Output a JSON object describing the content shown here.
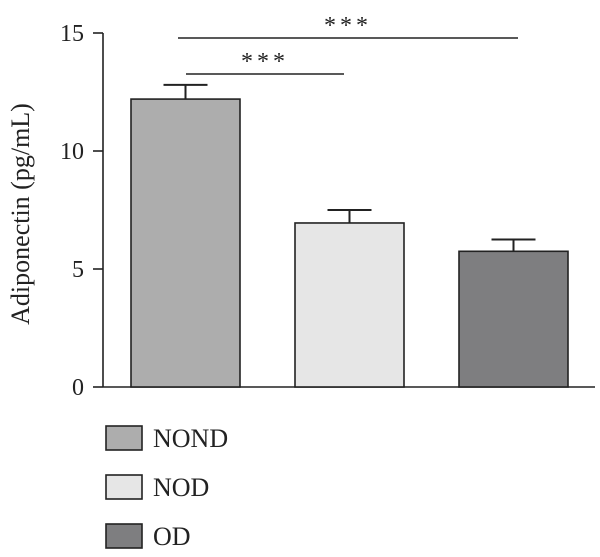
{
  "chart_data": {
    "type": "bar",
    "title": "",
    "xlabel": "",
    "ylabel": "Adiponectin (pg/mL)",
    "ylim": [
      0,
      15
    ],
    "yticks": [
      0,
      5,
      10,
      15
    ],
    "categories": [
      "NOND",
      "NOD",
      "OD"
    ],
    "values": [
      12.2,
      6.95,
      5.75
    ],
    "errors": [
      0.6,
      0.55,
      0.5
    ],
    "colors": [
      "#adadad",
      "#e6e6e6",
      "#7e7e80"
    ],
    "significance": [
      {
        "from": "NOND",
        "to": "NOD",
        "label": "***"
      },
      {
        "from": "NOND",
        "to": "OD",
        "label": "***"
      }
    ],
    "legend": {
      "placement": "bottom-left",
      "entries": [
        "NOND",
        "NOD",
        "OD"
      ]
    },
    "grid": false
  }
}
